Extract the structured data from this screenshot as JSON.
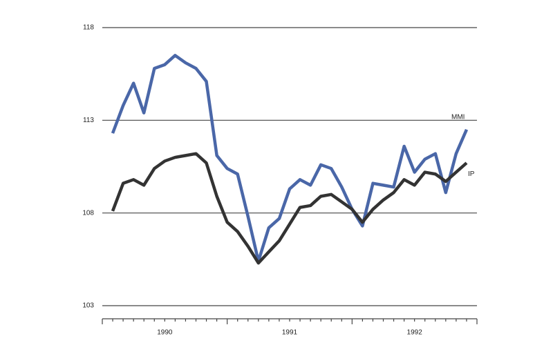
{
  "chart_data": {
    "type": "line",
    "x": [
      1990.083,
      1990.167,
      1990.25,
      1990.333,
      1990.417,
      1990.5,
      1990.583,
      1990.667,
      1990.75,
      1990.833,
      1990.917,
      1991,
      1991.083,
      1991.167,
      1991.25,
      1991.333,
      1991.417,
      1991.5,
      1991.583,
      1991.667,
      1991.75,
      1991.833,
      1991.917,
      1992,
      1992.083,
      1992.167,
      1992.25,
      1992.333,
      1992.417,
      1992.5,
      1992.583,
      1992.667,
      1992.75,
      1992.833,
      1992.917
    ],
    "series": [
      {
        "name": "MMI",
        "color": "#4a67a8",
        "values": [
          112.3,
          113.8,
          115.0,
          113.4,
          115.8,
          116.0,
          116.5,
          116.1,
          115.8,
          115.1,
          111.1,
          110.4,
          110.1,
          107.8,
          105.4,
          107.2,
          107.7,
          109.3,
          109.8,
          109.5,
          110.6,
          110.4,
          109.4,
          108.2,
          107.3,
          109.6,
          109.5,
          109.4,
          111.6,
          110.2,
          110.9,
          111.2,
          109.1,
          111.2,
          112.5
        ]
      },
      {
        "name": "IP",
        "color": "#333333",
        "values": [
          108.1,
          109.6,
          109.8,
          109.5,
          110.4,
          110.8,
          111.0,
          111.1,
          111.2,
          110.7,
          108.9,
          107.5,
          107.0,
          106.2,
          105.3,
          105.9,
          106.5,
          107.4,
          108.3,
          108.4,
          108.9,
          109.0,
          108.6,
          108.2,
          107.5,
          108.2,
          108.7,
          109.1,
          109.8,
          109.5,
          110.2,
          110.1,
          109.7,
          110.2,
          110.7
        ]
      }
    ],
    "xlim": [
      1990,
      1993
    ],
    "xticks": [
      {
        "value": 1990.5,
        "label": "1990"
      },
      {
        "value": 1991.5,
        "label": "1991"
      },
      {
        "value": 1992.5,
        "label": "1992"
      }
    ],
    "ylim": [
      103,
      118
    ],
    "yticks": [
      103,
      108,
      113,
      118
    ],
    "grid": true
  }
}
